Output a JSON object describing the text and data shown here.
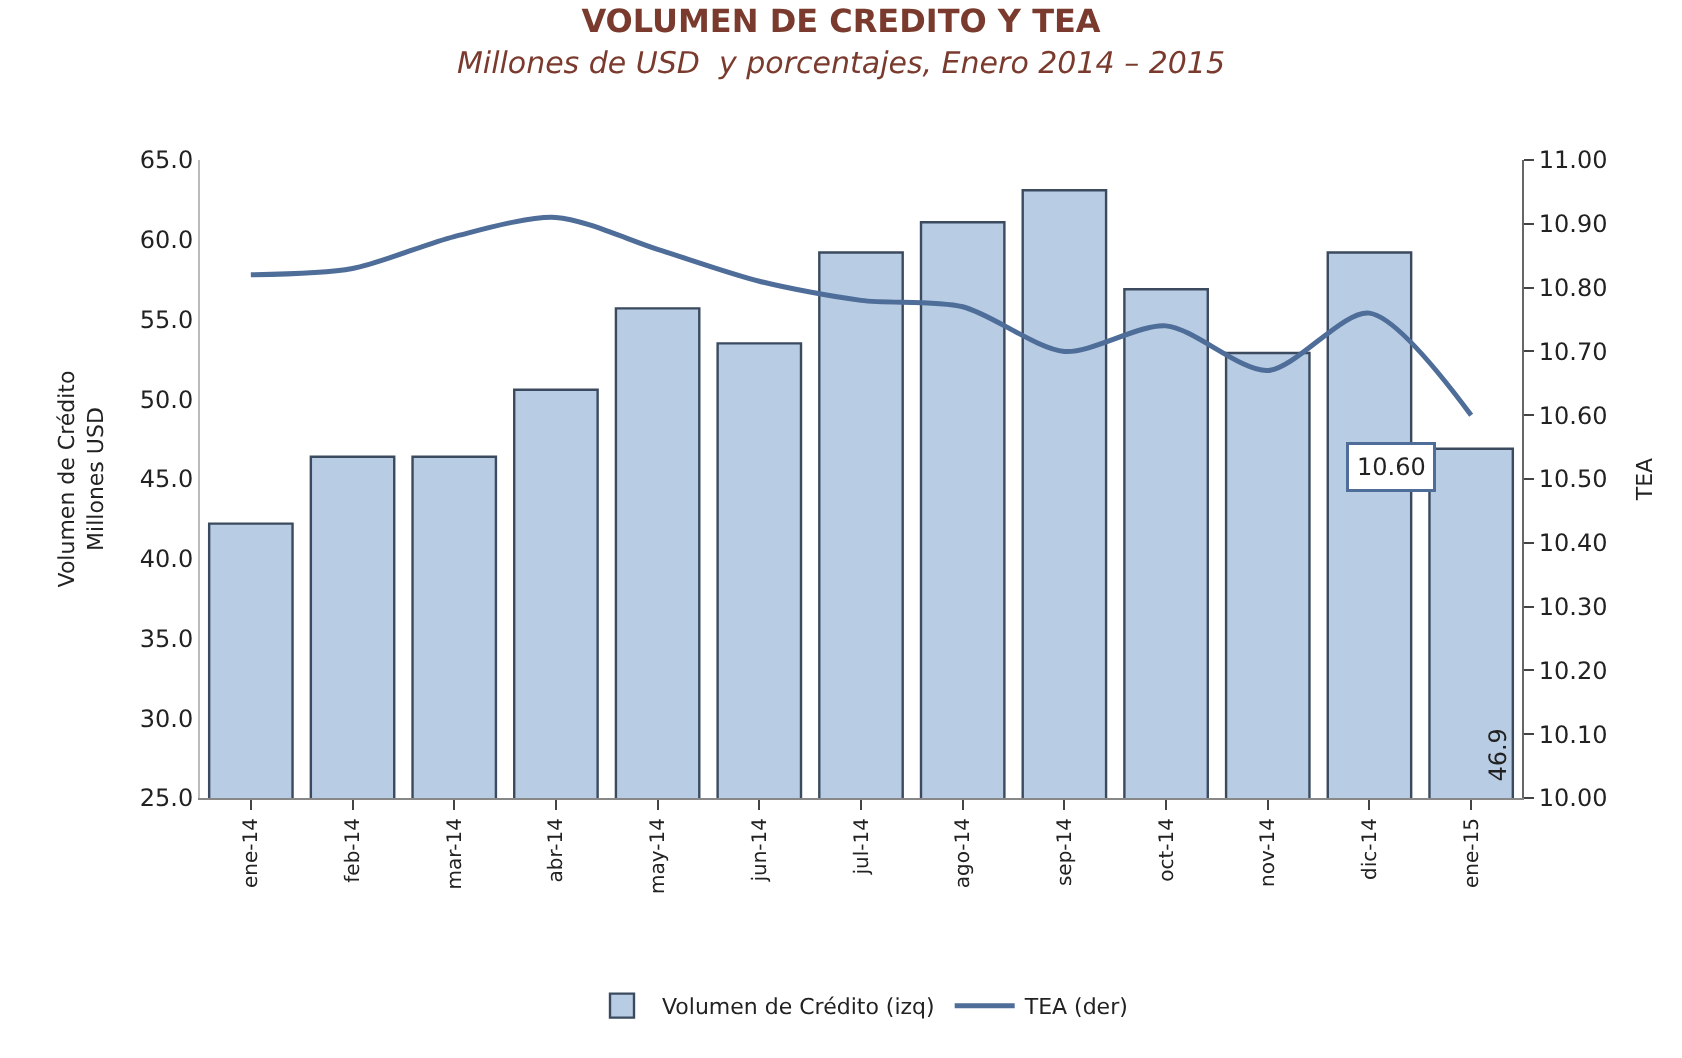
{
  "chart_data": {
    "type": "bar",
    "title": "VOLUMEN DE CREDITO Y TEA",
    "subtitle": "Millones de USD  y porcentajes, Enero 2014 – 2015",
    "ylabel": "Volumen de Crédito\nMillones USD",
    "y2label": "TEA",
    "categories": [
      "ene-14",
      "feb-14",
      "mar-14",
      "abr-14",
      "may-14",
      "jun-14",
      "jul-14",
      "ago-14",
      "sep-14",
      "oct-14",
      "nov-14",
      "dic-14",
      "ene-15"
    ],
    "series": [
      {
        "name": "Volumen de Crédito (izq)",
        "color": "#b8cce4",
        "values": [
          42.2,
          46.4,
          46.4,
          50.6,
          55.7,
          53.5,
          59.2,
          61.1,
          63.1,
          56.9,
          52.9,
          59.2,
          46.9
        ],
        "value_labels": [
          null,
          null,
          null,
          null,
          null,
          null,
          null,
          null,
          null,
          null,
          null,
          null,
          "46.9"
        ]
      },
      {
        "name": "TEA (der)",
        "type": "line",
        "axis": "y2",
        "color": "#4f6d99",
        "values": [
          10.82,
          10.83,
          10.88,
          10.91,
          10.86,
          10.81,
          10.78,
          10.77,
          10.7,
          10.74,
          10.67,
          10.76,
          10.6
        ],
        "value_labels": [
          null,
          null,
          null,
          null,
          null,
          null,
          null,
          null,
          null,
          null,
          null,
          null,
          "10.60"
        ]
      }
    ],
    "ylim": [
      25,
      65
    ],
    "yticks": [
      {
        "value": 25,
        "label": "25.0"
      },
      {
        "value": 30,
        "label": "30.0"
      },
      {
        "value": 35,
        "label": "35.0"
      },
      {
        "value": 40,
        "label": "40.0"
      },
      {
        "value": 45,
        "label": "45.0"
      },
      {
        "value": 50,
        "label": "50.0"
      },
      {
        "value": 55,
        "label": "55.0"
      },
      {
        "value": 60,
        "label": "60.0"
      },
      {
        "value": 65,
        "label": "65.0"
      }
    ],
    "y2lim": [
      10.0,
      11.0
    ],
    "y2ticks": [
      {
        "value": 10.0,
        "label": "10.00"
      },
      {
        "value": 10.1,
        "label": "10.10"
      },
      {
        "value": 10.2,
        "label": "10.20"
      },
      {
        "value": 10.3,
        "label": "10.30"
      },
      {
        "value": 10.4,
        "label": "10.40"
      },
      {
        "value": 10.5,
        "label": "10.50"
      },
      {
        "value": 10.6,
        "label": "10.60"
      },
      {
        "value": 10.7,
        "label": "10.70"
      },
      {
        "value": 10.8,
        "label": "10.80"
      },
      {
        "value": 10.9,
        "label": "10.90"
      },
      {
        "value": 11.0,
        "label": "11.00"
      }
    ],
    "grid": false,
    "legend": "bottom",
    "marker": "none",
    "line_style": "solid"
  }
}
